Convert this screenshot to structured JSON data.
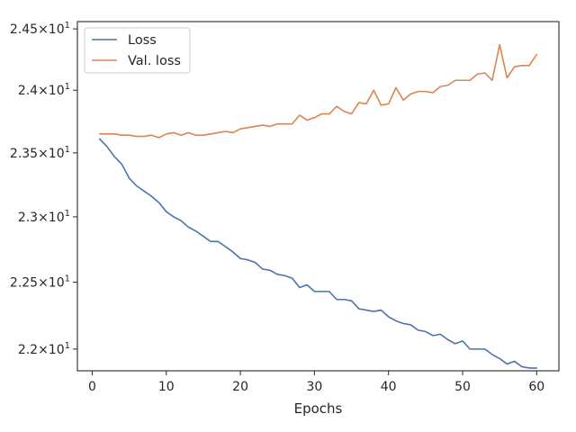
{
  "chart_data": {
    "type": "line",
    "title": "",
    "xlabel": "Epochs",
    "ylabel": "",
    "xlim": [
      -2,
      63
    ],
    "ylim": [
      21.84,
      24.56
    ],
    "y_scale": "log",
    "grid": false,
    "legend_position": "top-left",
    "x_ticks": [
      0,
      10,
      20,
      30,
      40,
      50,
      60
    ],
    "x_tick_labels": [
      "0",
      "10",
      "20",
      "30",
      "40",
      "50",
      "60"
    ],
    "y_ticks": [
      22.0,
      22.5,
      23.0,
      23.5,
      24.0,
      24.5
    ],
    "y_tick_labels": [
      {
        "mantissa": "2.2",
        "exp": "1"
      },
      {
        "mantissa": "2.25",
        "exp": "1"
      },
      {
        "mantissa": "2.3",
        "exp": "1"
      },
      {
        "mantissa": "2.35",
        "exp": "1"
      },
      {
        "mantissa": "2.4",
        "exp": "1"
      },
      {
        "mantissa": "2.45",
        "exp": "1"
      }
    ],
    "x": [
      1,
      2,
      3,
      4,
      5,
      6,
      7,
      8,
      9,
      10,
      11,
      12,
      13,
      14,
      15,
      16,
      17,
      18,
      19,
      20,
      21,
      22,
      23,
      24,
      25,
      26,
      27,
      28,
      29,
      30,
      31,
      32,
      33,
      34,
      35,
      36,
      37,
      38,
      39,
      40,
      41,
      42,
      43,
      44,
      45,
      46,
      47,
      48,
      49,
      50,
      51,
      52,
      53,
      54,
      55,
      56,
      57,
      58,
      59,
      60
    ],
    "series": [
      {
        "name": "Loss",
        "color": "#4c72b0",
        "values": [
          23.61,
          23.55,
          23.47,
          23.41,
          23.3,
          23.24,
          23.2,
          23.16,
          23.11,
          23.04,
          23.0,
          22.97,
          22.92,
          22.89,
          22.85,
          22.81,
          22.81,
          22.77,
          22.73,
          22.68,
          22.67,
          22.65,
          22.6,
          22.59,
          22.56,
          22.55,
          22.53,
          22.46,
          22.48,
          22.43,
          22.43,
          22.43,
          22.37,
          22.37,
          22.36,
          22.3,
          22.29,
          22.28,
          22.29,
          22.24,
          22.21,
          22.19,
          22.18,
          22.14,
          22.13,
          22.1,
          22.11,
          22.07,
          22.04,
          22.06,
          22.0,
          22.0,
          22.0,
          21.96,
          21.93,
          21.89,
          21.91,
          21.87,
          21.86,
          21.86
        ]
      },
      {
        "name": "Val. loss",
        "color": "#dd8452",
        "values": [
          23.65,
          23.65,
          23.65,
          23.64,
          23.64,
          23.63,
          23.63,
          23.64,
          23.62,
          23.65,
          23.66,
          23.64,
          23.66,
          23.64,
          23.64,
          23.65,
          23.66,
          23.67,
          23.66,
          23.69,
          23.7,
          23.71,
          23.72,
          23.71,
          23.73,
          23.73,
          23.73,
          23.8,
          23.76,
          23.78,
          23.81,
          23.81,
          23.87,
          23.83,
          23.81,
          23.9,
          23.89,
          24.0,
          23.88,
          23.89,
          24.02,
          23.92,
          23.97,
          23.99,
          23.99,
          23.98,
          24.03,
          24.04,
          24.08,
          24.08,
          24.08,
          24.13,
          24.14,
          24.08,
          24.37,
          24.1,
          24.19,
          24.2,
          24.2,
          24.29
        ]
      }
    ]
  }
}
